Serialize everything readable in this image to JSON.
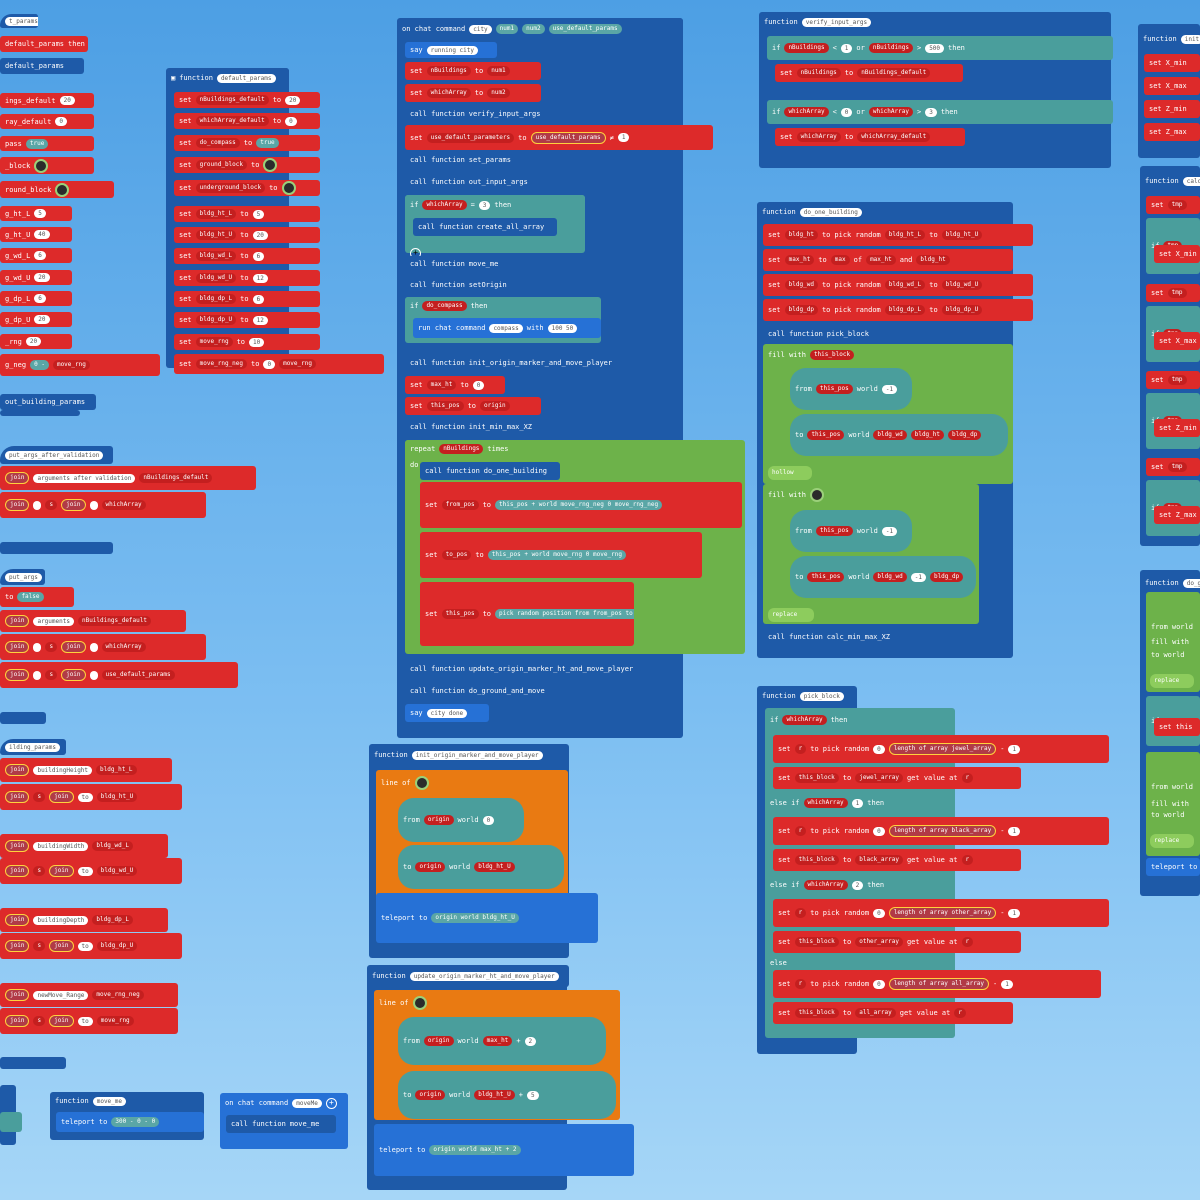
{
  "c1": {
    "func_default_params_partial": "t_params",
    "line_default_params_call": "default_params",
    "then": "then",
    "defaults": [
      "ings_default",
      "ray_default",
      "pass",
      "_block",
      "round_block",
      "g_ht_L",
      "g_ht_U",
      "g_wd_L",
      "g_wd_U",
      "g_dp_L",
      "g_dp_U",
      "_rng",
      "g_neg"
    ],
    "vals": [
      "20",
      "0",
      "true",
      "",
      "",
      "5",
      "40",
      "6",
      "20",
      "6",
      "20",
      "20",
      "0"
    ],
    "minus": "-",
    "move_rng": "move_rng",
    "call_out_building_params": "out_building_params",
    "func_out_args_after_validation": "put_args_after_validation",
    "join": "join",
    "args_after_validation": "arguments after validation",
    "nBuildings_default": "nBuildings_default",
    "s": "s",
    "whichArray_default": "whichArray",
    "func_out_args": "put_args",
    "to_false": "false",
    "arguments": "arguments",
    "use_default_params": "use_default_params",
    "func_building_params": "ilding_params",
    "buildingHeight": "buildingHeight",
    "bldg_ht_L": "bldg_ht_L",
    "bldg_ht_U": "bldg_ht_U",
    "to_str": "to",
    "buildingWidth": "buildingWidth",
    "bldg_wd_L": "bldg_wd_L",
    "bldg_wd_U": "bldg_wd_U",
    "buildingDepth": "buildingDepth",
    "bldg_dp_L": "bldg_dp_L",
    "bldg_dp_U": "bldg_dp_U",
    "newMove_Range": "newMove_Range",
    "move_rng_neg": "move_rng_neg"
  },
  "c2": {
    "function": "function",
    "name": "default_params",
    "set": "set",
    "to": "to",
    "rows": [
      {
        "v": "nBuildings_default",
        "val": "20"
      },
      {
        "v": "whichArray_default",
        "val": "0"
      },
      {
        "v": "do_compass",
        "val": "true"
      },
      {
        "v": "ground_block",
        "val": ""
      },
      {
        "v": "underground_block",
        "val": ""
      },
      {
        "v": "bldg_ht_L",
        "val": "5"
      },
      {
        "v": "bldg_ht_U",
        "val": "20"
      },
      {
        "v": "bldg_wd_L",
        "val": "6"
      },
      {
        "v": "bldg_wd_U",
        "val": "12"
      },
      {
        "v": "bldg_dp_L",
        "val": "6"
      },
      {
        "v": "bldg_dp_U",
        "val": "12"
      },
      {
        "v": "move_rng",
        "val": "10"
      },
      {
        "v": "move_rng_neg",
        "val": "0"
      }
    ],
    "move_rng": "move_rng"
  },
  "c3": {
    "on_chat_command": "on chat command",
    "city": "city",
    "num1": "num1",
    "num2": "num2",
    "use_default_params": "use_default_params",
    "say": "say",
    "running_city": "running city",
    "set": "set",
    "to": "to",
    "nBuildings": "nBuildings",
    "whichArray": "whichArray",
    "call_function": "call function",
    "verify_input_args": "verify_input_args",
    "use_default_parameters": "use_default_parameters",
    "neq": "≠",
    "one": "1",
    "set_params": "set_params",
    "out_input_args": "out_input_args",
    "if": "if",
    "eq": "=",
    "three": "3",
    "then": "then",
    "create_all_array": "create_all_array",
    "move_me": "move_me",
    "setOrigin": "setOrigin",
    "do_compass": "do_compass",
    "run_chat_command": "run chat command",
    "compass": "compass",
    "with": "with",
    "coords": "100 50",
    "init_origin_marker_and_move_player": "init_origin_marker_and_move_player",
    "max_ht": "max_ht",
    "zero": "0",
    "this_pos": "this_pos",
    "origin": "origin",
    "init_min_max_XZ": "init_min_max_XZ",
    "repeat": "repeat",
    "times": "times",
    "do": "do",
    "do_one_building": "do_one_building",
    "from_pos": "from_pos",
    "world": "world",
    "plus": "+",
    "move_rng_neg": "move_rng_neg",
    "to_pos": "to_pos",
    "move_rng": "move_rng",
    "pick_random_position": "pick random position",
    "from": "from",
    "to_word": "to",
    "update_origin_marker_ht_and_move_player": "update_origin_marker_ht_and_move_player",
    "do_ground_and_move": "do_ground_and_move",
    "city_done": "city done"
  },
  "c4": {
    "function": "function",
    "init_name": "init_origin_marker_and_move_player",
    "line_of": "line of",
    "from": "from",
    "to": "to",
    "origin": "origin",
    "world": "world",
    "zero": "0",
    "bldg_ht_U": "bldg_ht_U",
    "teleport_to": "teleport to",
    "update_name": "update_origin_marker_ht_and_move_player",
    "max_ht": "max_ht",
    "two": "2",
    "five": "5",
    "plus": "+"
  },
  "c5": {
    "function": "function",
    "verify_name": "verify_input_args",
    "if": "if",
    "nBuildings": "nBuildings",
    "lt": "<",
    "gt": ">",
    "or": "or",
    "one": "1",
    "fivehundred": "500",
    "then": "then",
    "set": "set",
    "to": "to",
    "nBuildings_default": "nBuildings_default",
    "whichArray": "whichArray",
    "zero": "0",
    "three": "3",
    "whichArray_default": "whichArray_default",
    "do_one_building": "do_one_building",
    "bldg_ht": "bldg_ht",
    "pick_random": "pick random",
    "bldg_ht_L": "bldg_ht_L",
    "bldg_ht_U": "bldg_ht_U",
    "max_ht": "max_ht",
    "max": "max",
    "of": "of",
    "and": "and",
    "bldg_wd": "bldg_wd",
    "bldg_wd_L": "bldg_wd_L",
    "bldg_wd_U": "bldg_wd_U",
    "bldg_dp": "bldg_dp",
    "bldg_dp_L": "bldg_dp_L",
    "bldg_dp_U": "bldg_dp_U",
    "call_function": "call function",
    "pick_block": "pick_block",
    "fill_with": "fill with",
    "this_block": "this_block",
    "from": "from",
    "this_pos": "this_pos",
    "world": "world",
    "minus1": "-1",
    "hollow": "hollow",
    "replace": "replace",
    "calc_min_max_XZ": "calc_min_max_XZ",
    "r": "r",
    "length_of_array": "length of array",
    "jewel_array": "jewel_array",
    "minus": "-",
    "get_value_at": "get value at",
    "else_if": "else if",
    "else": "else",
    "black_array": "black_array",
    "two": "2",
    "other_array": "other_array",
    "all_array": "all_array"
  },
  "c6": {
    "function": "function",
    "init_partial": "init",
    "set": "set",
    "xmin": "X_min",
    "xmax": "X_max",
    "zmin": "Z_min",
    "zmax": "Z_max",
    "calc_partial": "calc",
    "tmp": "tmp",
    "if": "if",
    "do_partial": "do_g",
    "fill_with": "fill with",
    "from": "from",
    "world": "world",
    "to": "to",
    "replace": "replace",
    "not": "not",
    "this": "this",
    "teleport_to": "teleport to"
  },
  "bottom": {
    "function": "function",
    "move_me": "move_me",
    "teleport_to": "teleport to",
    "v300": "300",
    "zero": "0",
    "on_chat_command": "on chat command",
    "moveMe": "moveMe",
    "call_function": "call function",
    "minus": "-"
  }
}
